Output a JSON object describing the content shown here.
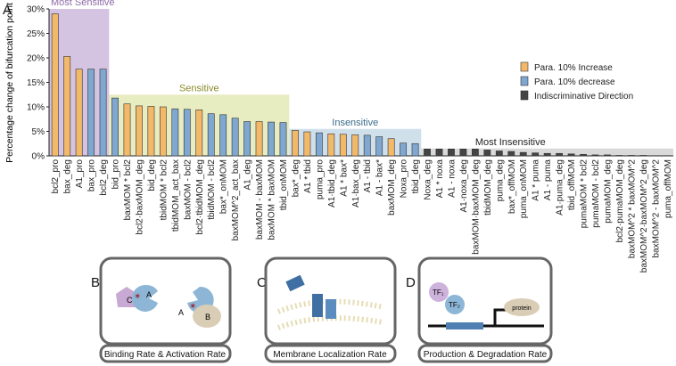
{
  "chart_data": {
    "type": "bar",
    "panel_label": "A",
    "y_label": "Percentage change of bifurcation point",
    "categories": [
      "bcl2_pro",
      "bax_deg",
      "A1_pro",
      "bax_pro",
      "bcl2_deg",
      "bid_pro",
      "baxMOM * bcl2",
      "bcl2·baxMOM_deg",
      "bid_deg",
      "tbidMOM * bcl2",
      "tbidMOM_act_bax",
      "baxMOM - bcl2",
      "bcl2·tbidMOM_deg",
      "tbidMOM - bcl2",
      "bax*_onMOM",
      "baxMOM^2_act_bax",
      "A1_deg",
      "baxMOM - baxMOM",
      "baxMOM * baxMOM",
      "tbid_onMOM",
      "bax*_deg",
      "A1 * tbid",
      "puma_pro",
      "A1·tbid_deg",
      "A1 * bax*",
      "A1·bax_deg",
      "A1 - tbid",
      "A1 - bax*",
      "baxMOM_deg",
      "Noxa_pro",
      "tbid_deg",
      "Noxa_deg",
      "A1 * noxa",
      "A1 - noxa",
      "A1·noxa_deg",
      "baxMOM·baxMOM_deg",
      "tbidMOM_deg",
      "puma_deg",
      "bax*_offMOM",
      "puma_onMOM",
      "A1 * puma",
      "A1 - puma",
      "A1·puma_deg",
      "tbid_offMOM",
      "pumaMOM * bcl2",
      "pumaMOM - bcl2",
      "pumaMOM_deg",
      "bcl2·pumaMOM_deg",
      "baxMOM^2 * baxMOM^2",
      "baxMOM^2·baxMOM^2_deg",
      "baxMOM^2 - baxMOM^2",
      "puma_offMOM"
    ],
    "series": [
      {
        "name": "Para. 10%  Increase",
        "color": "#f2b96b",
        "values": [
          29,
          20.3,
          17.7,
          null,
          null,
          null,
          10.6,
          10.2,
          10.1,
          10.0,
          null,
          null,
          9.4,
          null,
          null,
          null,
          null,
          7.0,
          null,
          null,
          5.2,
          4.9,
          null,
          4.5,
          4.4,
          4.3,
          null,
          null,
          3.5,
          null,
          null,
          null,
          null,
          null,
          null,
          null,
          null,
          null,
          null,
          null,
          null,
          null,
          null,
          null,
          null,
          null,
          null,
          null,
          null,
          null,
          null,
          null
        ]
      },
      {
        "name": "Para. 10%  decrease",
        "color": "#7fa7cf",
        "values": [
          null,
          null,
          null,
          17.7,
          17.7,
          11.8,
          null,
          null,
          null,
          null,
          9.6,
          9.5,
          null,
          8.6,
          8.4,
          7.7,
          7.0,
          null,
          6.9,
          6.8,
          null,
          null,
          4.7,
          null,
          null,
          null,
          4.2,
          3.9,
          null,
          2.6,
          2.5,
          null,
          null,
          null,
          null,
          null,
          null,
          null,
          null,
          null,
          null,
          null,
          null,
          null,
          null,
          null,
          null,
          null,
          null,
          null,
          null,
          null
        ]
      },
      {
        "name": "Indiscriminative Direction",
        "color": "#444444",
        "values": [
          null,
          null,
          null,
          null,
          null,
          null,
          null,
          null,
          null,
          null,
          null,
          null,
          null,
          null,
          null,
          null,
          null,
          null,
          null,
          null,
          null,
          null,
          null,
          null,
          null,
          null,
          null,
          null,
          null,
          null,
          null,
          1.4,
          1.4,
          1.4,
          1.4,
          1.4,
          1.2,
          1.0,
          0.9,
          0.7,
          0.6,
          0.5,
          0.5,
          0.4,
          0.3,
          0.2,
          0.2,
          0.1,
          0.1,
          0.1,
          0.05,
          0.05
        ]
      }
    ],
    "ylim": [
      0,
      30
    ],
    "yticks": [
      {
        "value": 0,
        "label": "0%"
      },
      {
        "value": 5,
        "label": "5%"
      },
      {
        "value": 10,
        "label": "10%"
      },
      {
        "value": 15,
        "label": "15%"
      },
      {
        "value": 20,
        "label": "20%"
      },
      {
        "value": 25,
        "label": "25%"
      },
      {
        "value": 30,
        "label": "30%"
      }
    ],
    "regions": [
      {
        "label": "Most Sensitive",
        "from": "bcl2_pro",
        "to": "bcl2_deg",
        "top": 30,
        "color": "#cdb8dc",
        "text_color": "#8e6aa8"
      },
      {
        "label": "Sensitive",
        "from": "bid_pro",
        "to": "tbid_onMOM",
        "top": 12.5,
        "color": "#e4e9b6",
        "text_color": "#8a8a2a"
      },
      {
        "label": "Insensitive",
        "from": "bax*_deg",
        "to": "tbid_deg",
        "top": 5.5,
        "color": "#c8dbe8",
        "text_color": "#3a6b8a"
      },
      {
        "label": "Most Insensitive",
        "from": "Noxa_deg",
        "to": "puma_offMOM",
        "top": 1.5,
        "color": "#d2d2d2",
        "text_color": "#222222"
      }
    ]
  },
  "panels": [
    {
      "letter": "B",
      "caption": "Binding Rate & Activation Rate",
      "labels": [
        "C",
        "A",
        "A",
        "B"
      ]
    },
    {
      "letter": "C",
      "caption": "Membrane Localization Rate"
    },
    {
      "letter": "D",
      "caption": "Production & Degradation Rate",
      "labels": [
        "TF₁",
        "TF₂",
        "protein"
      ]
    }
  ]
}
